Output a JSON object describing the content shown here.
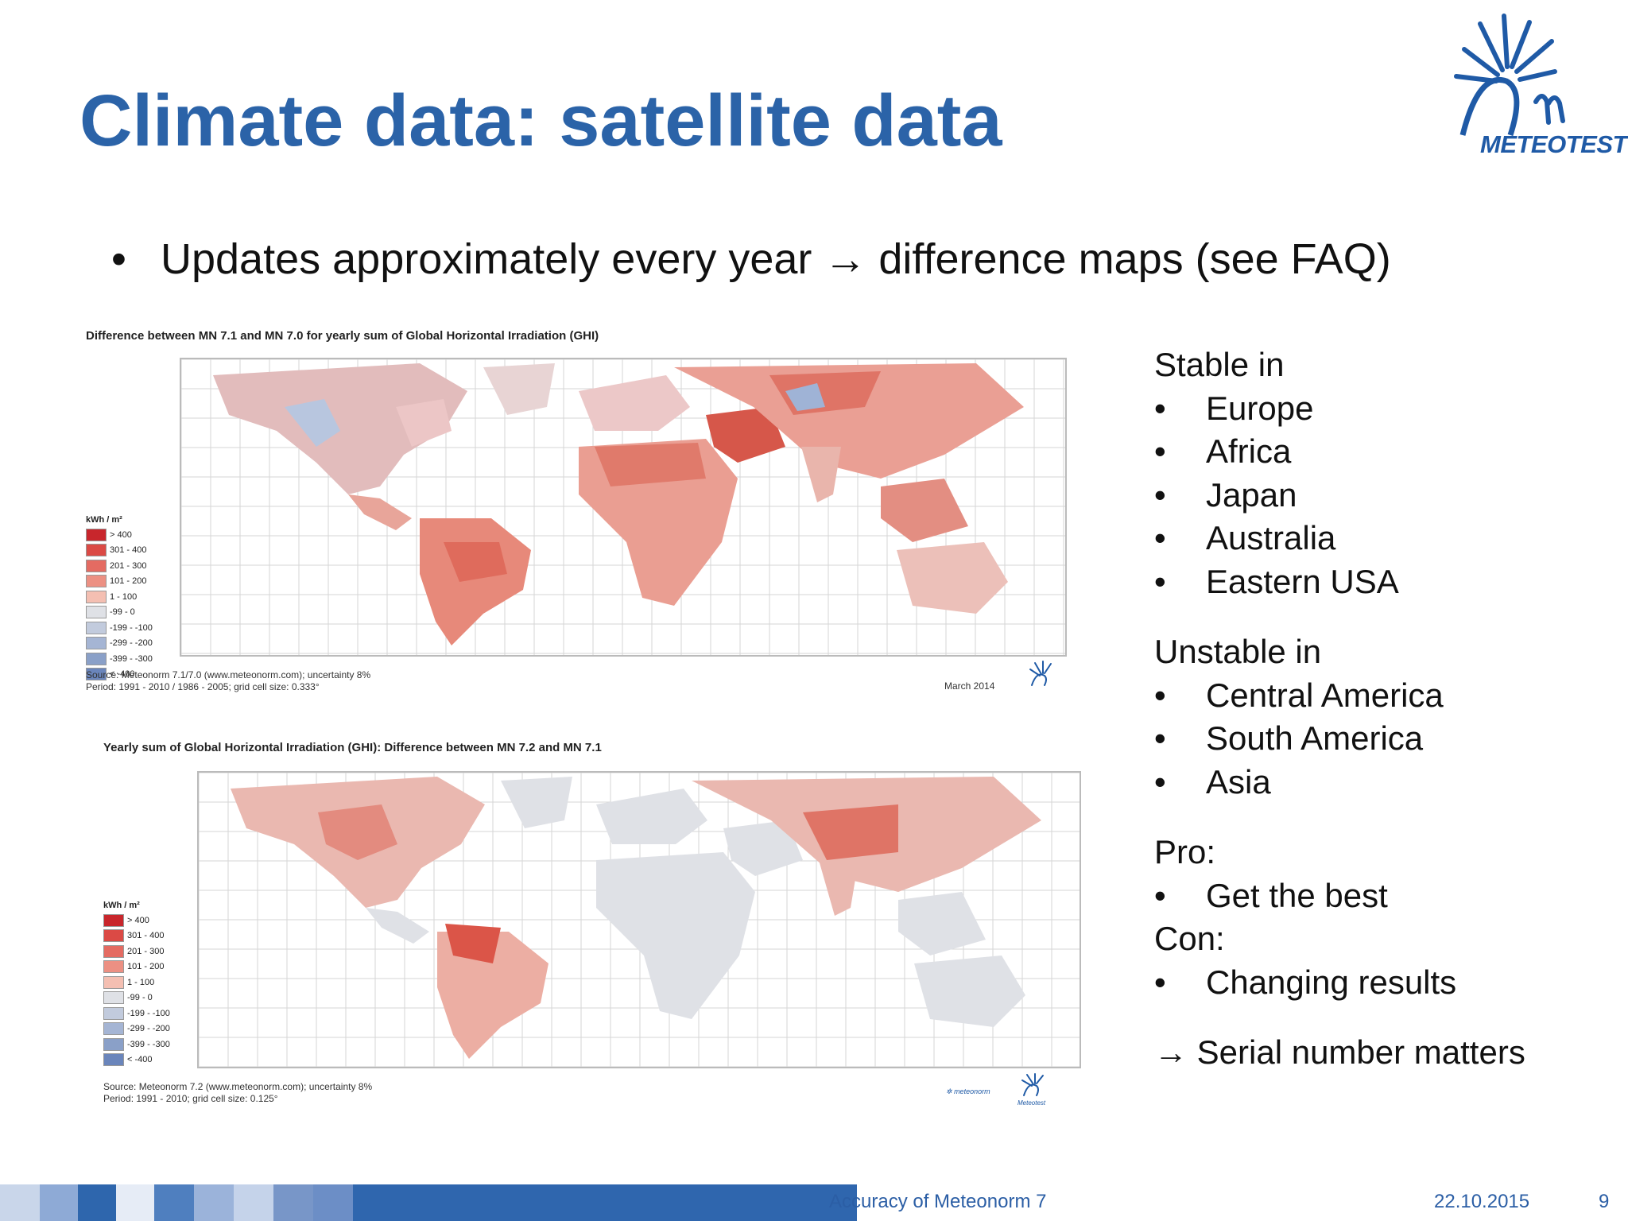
{
  "slide": {
    "title": "Climate data: satellite data",
    "logo_text": "METEOTEST",
    "main_bullet": "Updates approximately every year → difference maps (see FAQ)"
  },
  "map1": {
    "title": "Difference between MN 7.1 and MN 7.0 for yearly sum of Global Horizontal Irradiation (GHI)",
    "legend_title": "kWh / m²",
    "legend": [
      "> 400",
      "301 - 400",
      "201 - 300",
      "101 - 200",
      "1 - 100",
      "-99 - 0",
      "-199 - -100",
      "-299 - -200",
      "-399 - -300",
      "< -400"
    ],
    "source_line1": "Source: Meteonorm 7.1/7.0  (www.meteonorm.com); uncertainty 8%",
    "source_line2": "Period: 1991 - 2010 / 1986 - 2005; grid cell size: 0.333°",
    "date": "March 2014"
  },
  "map2": {
    "title": "Yearly sum of Global Horizontal Irradiation (GHI): Difference between MN 7.2 and MN 7.1",
    "legend_title": "kWh / m²",
    "legend": [
      "> 400",
      "301 - 400",
      "201 - 300",
      "101 - 200",
      "1 - 100",
      "-99 - 0",
      "-199 - -100",
      "-299 - -200",
      "-399 - -300",
      "< -400"
    ],
    "source_line1": "Source: Meteonorm 7.2 (www.meteonorm.com); uncertainty 8%",
    "source_line2": "Period: 1991 - 2010; grid cell size: 0.125°",
    "logo_meteonorm": "meteonorm",
    "logo_meteotest": "Meteotest"
  },
  "legend_colors": [
    "#c8262c",
    "#db4a45",
    "#e46b62",
    "#ec9083",
    "#f4bfb2",
    "#dfe1e6",
    "#c2cbdd",
    "#a5b5d4",
    "#8aa0c8",
    "#6a85bb"
  ],
  "side": {
    "stable_head": "Stable in",
    "stable": [
      "Europe",
      "Africa",
      "Japan",
      "Australia",
      "Eastern USA"
    ],
    "unstable_head": "Unstable in",
    "unstable": [
      "Central America",
      "South America",
      "Asia"
    ],
    "pro_head": "Pro:",
    "pro": [
      "Get the best"
    ],
    "con_head": "Con:",
    "con": [
      "Changing results"
    ],
    "conclusion": "→ Serial number matters"
  },
  "footer": {
    "text": "Accuracy of Meteonorm 7",
    "date": "22.10.2015",
    "page": "9",
    "bar_colors": [
      "#c9d6ea",
      "#8eaad6",
      "#2e66ad",
      "#e6ecf6",
      "#4f7fbf",
      "#9bb3da",
      "#c5d3ea",
      "#7896c8",
      "#6c8ec6",
      "#2f66ae"
    ]
  }
}
